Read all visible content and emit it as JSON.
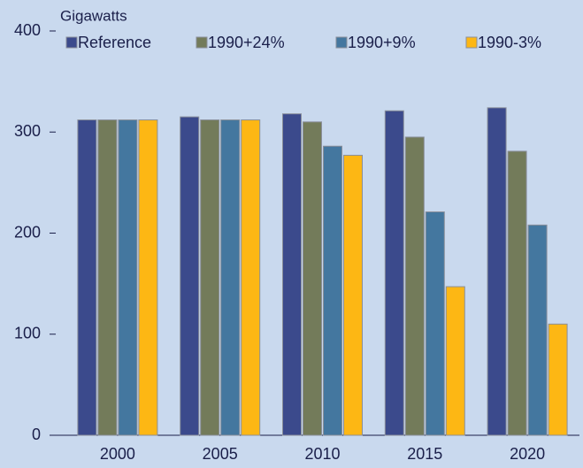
{
  "chart_data": {
    "type": "bar",
    "y_label": "Gigawatts",
    "categories": [
      "2000",
      "2005",
      "2010",
      "2015",
      "2020"
    ],
    "series": [
      {
        "name": "Reference",
        "color": "#3b4a8c",
        "values": [
          312,
          315,
          318,
          321,
          324
        ]
      },
      {
        "name": "1990+24%",
        "color": "#737b5a",
        "values": [
          312,
          312,
          310,
          295,
          281
        ]
      },
      {
        "name": "1990+9%",
        "color": "#44779f",
        "values": [
          312,
          312,
          286,
          221,
          208
        ]
      },
      {
        "name": "1990-3%",
        "color": "#fdb714",
        "values": [
          312,
          312,
          277,
          147,
          110
        ]
      }
    ],
    "ylim": [
      0,
      400
    ],
    "yticks": [
      0,
      100,
      200,
      300,
      400
    ],
    "grid": false,
    "legend": "top"
  }
}
